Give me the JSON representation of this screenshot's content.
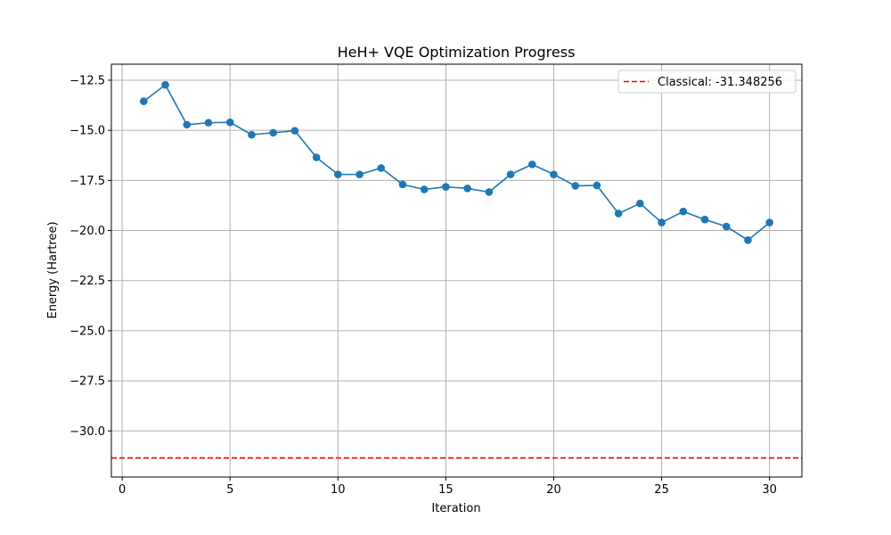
{
  "chart_data": {
    "type": "line",
    "title": "HeH+ VQE Optimization Progress",
    "xlabel": "Iteration",
    "ylabel": "Energy (Hartree)",
    "xlim": [
      -0.5,
      31.5
    ],
    "ylim": [
      -32.3,
      -11.7
    ],
    "grid": true,
    "legend_position": "top-right",
    "x_ticks": [
      0,
      5,
      10,
      15,
      20,
      25,
      30
    ],
    "x_tick_labels": [
      "0",
      "5",
      "10",
      "15",
      "20",
      "25",
      "30"
    ],
    "y_ticks": [
      -12.5,
      -15.0,
      -17.5,
      -20.0,
      -22.5,
      -25.0,
      -27.5,
      -30.0
    ],
    "y_tick_labels": [
      "−12.5",
      "−15.0",
      "−17.5",
      "−20.0",
      "−22.5",
      "−25.0",
      "−27.5",
      "−30.0"
    ],
    "series": [
      {
        "color": "#1f77b4",
        "marker": "circle",
        "x": [
          1,
          2,
          3,
          4,
          5,
          6,
          7,
          8,
          9,
          10,
          11,
          12,
          13,
          14,
          15,
          16,
          17,
          18,
          19,
          20,
          21,
          22,
          23,
          24,
          25,
          26,
          27,
          28,
          29,
          30
        ],
        "y": [
          -13.55,
          -12.73,
          -14.72,
          -14.62,
          -14.6,
          -15.22,
          -15.12,
          -15.02,
          -16.35,
          -17.2,
          -17.2,
          -16.88,
          -17.7,
          -17.95,
          -17.82,
          -17.9,
          -18.08,
          -17.2,
          -16.7,
          -17.2,
          -17.77,
          -17.75,
          -19.15,
          -18.65,
          -19.6,
          -19.05,
          -19.45,
          -19.8,
          -20.48,
          -19.6
        ]
      }
    ],
    "reference_lines": [
      {
        "name": "Classical: -31.348256",
        "value": -31.348256,
        "orientation": "horizontal",
        "style": "dashed",
        "color": "#ff0000"
      }
    ]
  }
}
